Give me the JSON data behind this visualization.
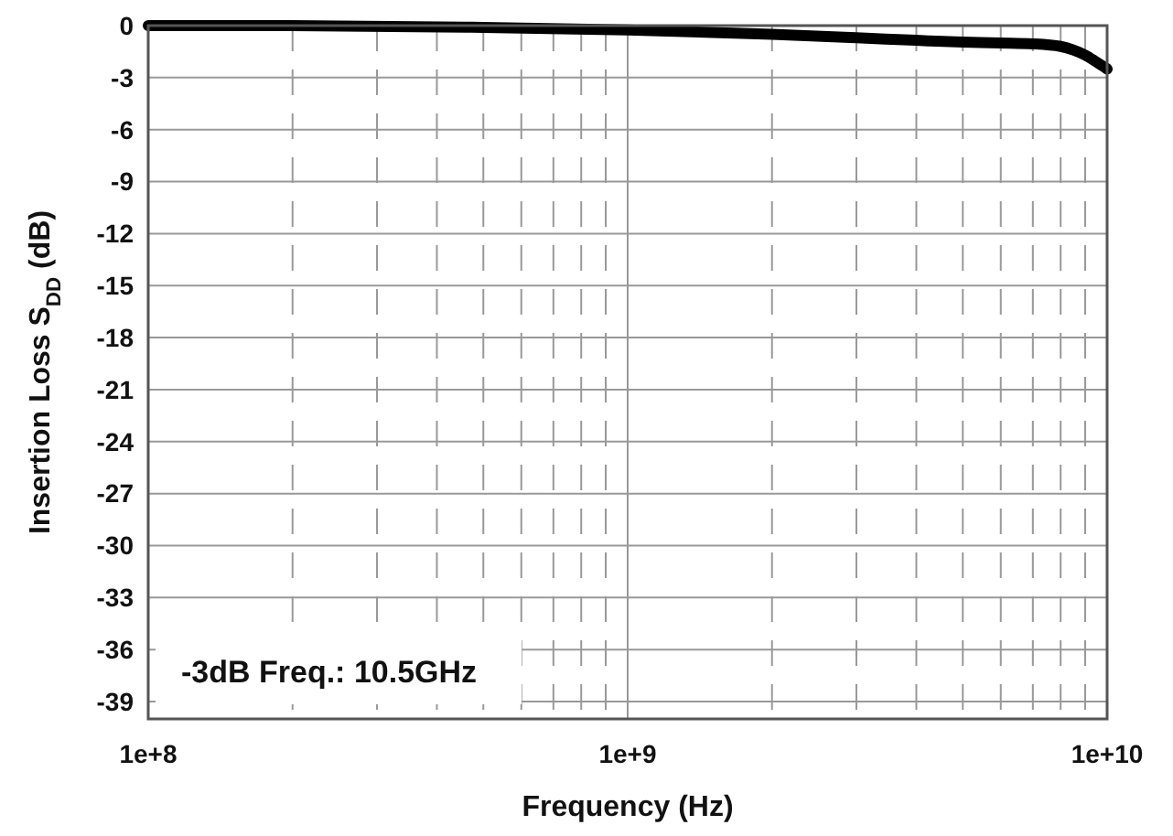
{
  "chart_data": {
    "type": "line",
    "xlabel": "Frequency (Hz)",
    "ylabel": "Insertion Loss S$_{DD}$ (dB)",
    "annotations": [
      "-3dB Freq.: 10.5GHz"
    ],
    "log": "x",
    "grid": true,
    "line_style": "solid",
    "marker": "none",
    "xlim": [
      100000000,
      10000000000
    ],
    "ylim": [
      -40,
      0
    ],
    "xticks": [
      {
        "value": 100000000,
        "label": "1e+8"
      },
      {
        "value": 200000000,
        "label": null
      },
      {
        "value": 300000000,
        "label": null
      },
      {
        "value": 400000000,
        "label": null
      },
      {
        "value": 500000000,
        "label": null
      },
      {
        "value": 600000000,
        "label": null
      },
      {
        "value": 700000000,
        "label": null
      },
      {
        "value": 800000000,
        "label": null
      },
      {
        "value": 900000000,
        "label": null
      },
      {
        "value": 1000000000,
        "label": "1e+9"
      },
      {
        "value": 2000000000,
        "label": null
      },
      {
        "value": 3000000000,
        "label": null
      },
      {
        "value": 4000000000,
        "label": null
      },
      {
        "value": 5000000000,
        "label": null
      },
      {
        "value": 6000000000,
        "label": null
      },
      {
        "value": 7000000000,
        "label": null
      },
      {
        "value": 8000000000,
        "label": null
      },
      {
        "value": 9000000000,
        "label": null
      },
      {
        "value": 10000000000,
        "label": "1e+10"
      }
    ],
    "yticks": [
      0,
      -3,
      -6,
      -9,
      -12,
      -15,
      -18,
      -21,
      -24,
      -27,
      -30,
      -33,
      -36,
      -39
    ],
    "series": [
      {
        "color": "#000000",
        "x": [
          100000000,
          200000000,
          500000000,
          1000000000,
          2000000000,
          3000000000,
          4000000000,
          5000000000,
          6000000000,
          7000000000,
          8000000000,
          8500000000,
          9000000000,
          9500000000,
          10000000000
        ],
        "values": [
          0,
          0,
          -0.1,
          -0.25,
          -0.5,
          -0.7,
          -0.85,
          -0.95,
          -1.0,
          -1.05,
          -1.2,
          -1.4,
          -1.7,
          -2.1,
          -2.5
        ]
      }
    ]
  }
}
